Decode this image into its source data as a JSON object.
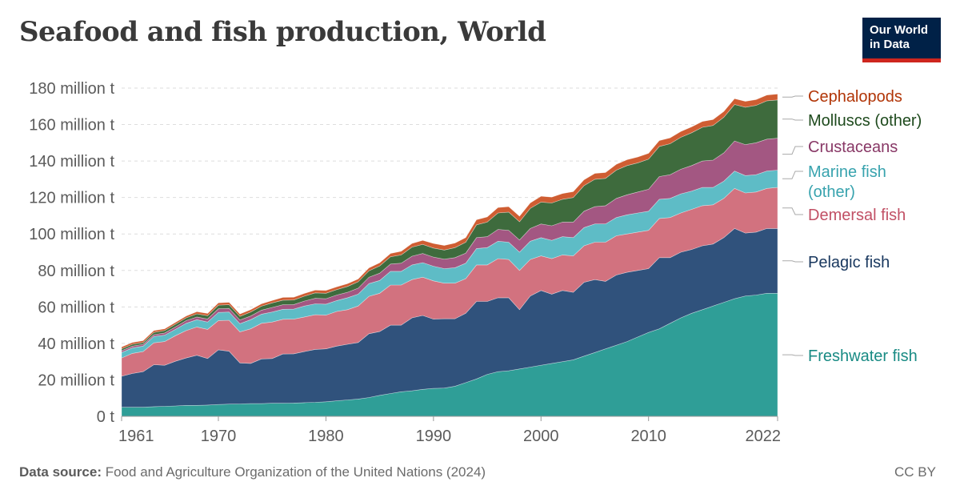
{
  "title": "Seafood and fish production, World",
  "logo": {
    "line1": "Our World",
    "line2": "in Data"
  },
  "footer": {
    "source_label": "Data source:",
    "source_text": "Food and Agriculture Organization of the United Nations (2024)",
    "license": "CC BY"
  },
  "chart_data": {
    "type": "area",
    "stacked": true,
    "title": "Seafood and fish production, World",
    "ylim": [
      0,
      180
    ],
    "y_unit": "million t",
    "y_ticks": [
      "0 t",
      "20 million t",
      "40 million t",
      "60 million t",
      "80 million t",
      "100 million t",
      "120 million t",
      "140 million t",
      "160 million t",
      "180 million t"
    ],
    "x_ticks": [
      "1961",
      "1970",
      "1980",
      "1990",
      "2000",
      "2010",
      "2022"
    ],
    "xlim": [
      1961,
      2022
    ],
    "grid": true,
    "legend_position": "right",
    "x": [
      1961,
      1962,
      1963,
      1964,
      1965,
      1966,
      1967,
      1968,
      1969,
      1970,
      1971,
      1972,
      1973,
      1974,
      1975,
      1976,
      1977,
      1978,
      1979,
      1980,
      1981,
      1982,
      1983,
      1984,
      1985,
      1986,
      1987,
      1988,
      1989,
      1990,
      1991,
      1992,
      1993,
      1994,
      1995,
      1996,
      1997,
      1998,
      1999,
      2000,
      2001,
      2002,
      2003,
      2004,
      2005,
      2006,
      2007,
      2008,
      2009,
      2010,
      2011,
      2012,
      2013,
      2014,
      2015,
      2016,
      2017,
      2018,
      2019,
      2020,
      2021,
      2022
    ],
    "series": [
      {
        "name": "Freshwater fish",
        "color": "#2f9e97",
        "values": [
          5,
          5,
          5,
          5.3,
          5.5,
          5.7,
          6,
          6,
          6.2,
          6.5,
          6.7,
          6.8,
          7,
          7,
          7.2,
          7.2,
          7.3,
          7.5,
          7.7,
          8,
          8.5,
          9,
          9.5,
          10.3,
          11.5,
          12.5,
          13.5,
          14,
          14.8,
          15.3,
          15.5,
          16.5,
          18.5,
          20.5,
          23,
          24.5,
          25,
          26,
          27,
          28,
          29,
          30,
          31,
          33,
          35,
          37,
          39,
          41,
          43.5,
          46,
          48,
          51,
          54,
          56.5,
          58.5,
          60.5,
          62.5,
          64.5,
          66,
          66.5,
          67.5,
          67.5
        ]
      },
      {
        "name": "Pelagic fish",
        "color": "#30527c",
        "values": [
          17,
          18.5,
          19.5,
          23,
          22.5,
          24.5,
          26,
          27.5,
          25.5,
          30,
          29,
          22.5,
          22,
          24.5,
          24.5,
          27,
          27,
          28,
          29,
          29,
          30,
          30.5,
          31,
          35,
          35,
          37.5,
          36.5,
          40,
          40.5,
          38,
          38,
          37,
          38,
          42.5,
          40,
          40.5,
          40,
          32.5,
          39,
          41,
          38,
          39,
          37,
          40.5,
          40,
          37,
          38.5,
          38,
          36.5,
          35,
          39,
          36,
          36,
          35,
          35,
          34,
          35.5,
          38.5,
          34.5,
          34.5,
          35.5,
          35.5
        ]
      },
      {
        "name": "Demersal fish",
        "color": "#d2727f",
        "values": [
          10,
          11,
          11,
          12,
          13,
          14,
          15,
          15.5,
          16,
          16,
          17,
          17,
          19,
          19.5,
          20,
          19,
          19,
          19,
          19,
          18.5,
          19,
          19,
          20,
          20.5,
          21,
          22,
          22,
          21,
          21,
          21,
          19.5,
          19.5,
          19,
          20,
          20,
          21.5,
          21,
          21.5,
          20,
          19,
          19.5,
          19.5,
          20,
          20,
          20.5,
          21.5,
          21.5,
          21,
          21,
          21,
          21.5,
          22,
          21.5,
          22,
          22,
          21.5,
          21.5,
          22,
          22,
          22,
          22,
          22.5
        ]
      },
      {
        "name": "Marine fish (other)",
        "color": "#5ebcc6",
        "values": [
          3,
          3,
          3,
          3.5,
          3.5,
          3.5,
          4,
          4,
          4,
          4.5,
          4.5,
          4.5,
          5,
          5,
          5.5,
          5.5,
          5.5,
          6,
          6,
          6,
          6,
          6.5,
          6.5,
          7,
          7,
          7.5,
          7.5,
          8,
          8,
          8,
          8,
          8.5,
          8.5,
          9,
          9.5,
          9.5,
          9.5,
          10,
          10,
          10,
          10,
          10,
          10,
          10,
          10,
          10,
          10,
          10.5,
          10.5,
          10.5,
          10.5,
          10.5,
          10.5,
          10,
          10,
          9.5,
          9.5,
          9.5,
          9.5,
          9.5,
          9.5,
          9.5
        ]
      },
      {
        "name": "Crustaceans",
        "color": "#a35782",
        "values": [
          1,
          1,
          1,
          1,
          1.2,
          1.3,
          1.5,
          1.5,
          1.7,
          2,
          2,
          2,
          2,
          2.2,
          2.5,
          2.5,
          2.5,
          2.7,
          3,
          3,
          3,
          3,
          3.3,
          3.5,
          4,
          4,
          4.5,
          4.8,
          5,
          5,
          5.2,
          5.5,
          5.5,
          6,
          6,
          6.5,
          6.5,
          6.7,
          7,
          7.5,
          8,
          8,
          8.5,
          9,
          9.5,
          10,
          10.5,
          11,
          11.5,
          12,
          12.5,
          13,
          13.5,
          14,
          14.5,
          15,
          15.5,
          16.5,
          17,
          17.5,
          17.5,
          17.5
        ]
      },
      {
        "name": "Molluscs (other)",
        "color": "#3e6b3d",
        "values": [
          1,
          1,
          1,
          1.2,
          1.3,
          1.5,
          1.5,
          1.7,
          1.8,
          2,
          2,
          2,
          2.2,
          2.2,
          2.5,
          2.5,
          2.5,
          2.7,
          3,
          3,
          3,
          3.2,
          3.5,
          3.5,
          4,
          4,
          4.5,
          5,
          5,
          5,
          5,
          5.5,
          6,
          7,
          8,
          9,
          10,
          10,
          11,
          12,
          12.5,
          12.5,
          13.5,
          14,
          15,
          15,
          15.5,
          16,
          16,
          16.5,
          16.5,
          17,
          17.5,
          18,
          18.5,
          19,
          19.5,
          20,
          20.5,
          20.5,
          21,
          21
        ]
      },
      {
        "name": "Cephalopods",
        "color": "#cf5d32",
        "values": [
          1,
          1,
          1,
          1,
          1,
          1,
          1,
          1.2,
          1.2,
          1.2,
          1.3,
          1.3,
          1.3,
          1.3,
          1.3,
          1.5,
          1.5,
          1.5,
          1.5,
          1.5,
          1.5,
          1.5,
          1.5,
          1.6,
          1.7,
          1.8,
          2,
          2,
          2.2,
          2.5,
          2.5,
          2.5,
          2.5,
          2.8,
          2.8,
          3,
          3,
          3,
          3,
          3.2,
          3.2,
          3.2,
          3.2,
          3.2,
          3.2,
          3.2,
          3.2,
          3.2,
          3.2,
          3.2,
          3.2,
          3.2,
          3.2,
          3.2,
          3.2,
          3.2,
          3.2,
          3.2,
          3.2,
          3.2,
          3.2,
          3.2
        ]
      }
    ]
  }
}
